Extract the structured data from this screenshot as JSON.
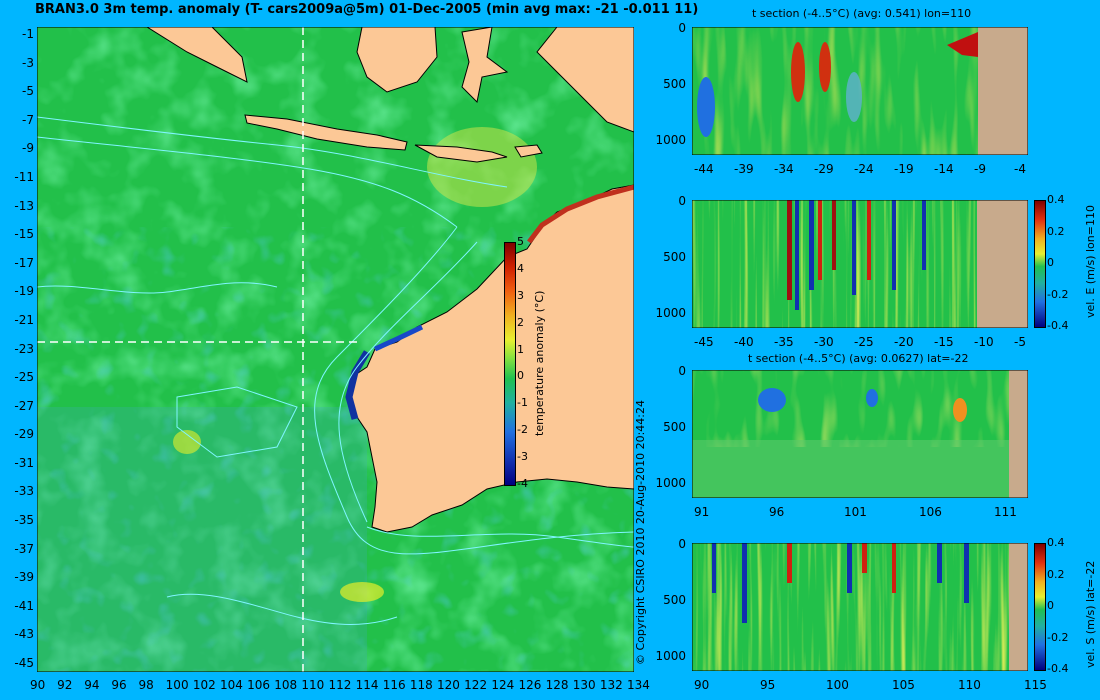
{
  "title": "BRAN3.0 3m temp. anomaly (T- cars2009a@5m) 01-Dec-2005 (min avg max: -21 -0.011 11)",
  "copyright": "© Copyright CSIRO 2010   20-Aug-2010 20:44:24",
  "colors": {
    "background": "#00b6ff",
    "land": "#fcc896",
    "section_land": "#c8aa8c",
    "ocean_base": "#22c04a",
    "contour": "#7ff5ff"
  },
  "map": {
    "lat_ticks": [
      "-1",
      "-3",
      "-5",
      "-7",
      "-9",
      "-11",
      "-13",
      "-15",
      "-17",
      "-19",
      "-21",
      "-23",
      "-25",
      "-27",
      "-29",
      "-31",
      "-33",
      "-35",
      "-37",
      "-39",
      "-41",
      "-43",
      "-45"
    ],
    "lon_ticks": [
      "90",
      "92",
      "94",
      "96",
      "98",
      "100",
      "102",
      "104",
      "106",
      "108",
      "110",
      "112",
      "114",
      "116",
      "118",
      "120",
      "122",
      "124",
      "126",
      "128",
      "130",
      "132",
      "134"
    ],
    "section_lon": 110,
    "section_lat": -22,
    "colorbar": {
      "label": "temperature anomaly (°C)",
      "ticks": [
        "5",
        "4",
        "3",
        "2",
        "1",
        "0",
        "-1",
        "-2",
        "-3",
        "-4"
      ]
    }
  },
  "panels": [
    {
      "title": "t section (-4..5°C) (avg: 0.541) lon=110",
      "y_ticks": [
        "0",
        "500",
        "1000"
      ],
      "x_ticks": [
        "-44",
        "-39",
        "-34",
        "-29",
        "-24",
        "-19",
        "-14",
        "-9",
        "-4"
      ],
      "colorbar_label": "",
      "colorbar_ticks": []
    },
    {
      "title": "",
      "y_ticks": [
        "0",
        "500",
        "1000"
      ],
      "x_ticks": [
        "-45",
        "-40",
        "-35",
        "-30",
        "-25",
        "-20",
        "-15",
        "-10",
        "-5"
      ],
      "colorbar_label": "vel. E (m/s) lon=110",
      "colorbar_ticks": [
        "0.4",
        "0.2",
        "0",
        "-0.2",
        "-0.4"
      ]
    },
    {
      "title": "t section (-4..5°C) (avg: 0.0627) lat=-22",
      "y_ticks": [
        "0",
        "500",
        "1000"
      ],
      "x_ticks": [
        "91",
        "96",
        "101",
        "106",
        "111"
      ],
      "colorbar_label": "",
      "colorbar_ticks": []
    },
    {
      "title": "",
      "y_ticks": [
        "0",
        "500",
        "1000"
      ],
      "x_ticks": [
        "90",
        "95",
        "100",
        "105",
        "110",
        "115"
      ],
      "colorbar_label": "vel. S (m/s) lat=-22",
      "colorbar_ticks": [
        "0.4",
        "0.2",
        "0",
        "-0.2",
        "-0.4"
      ]
    }
  ]
}
